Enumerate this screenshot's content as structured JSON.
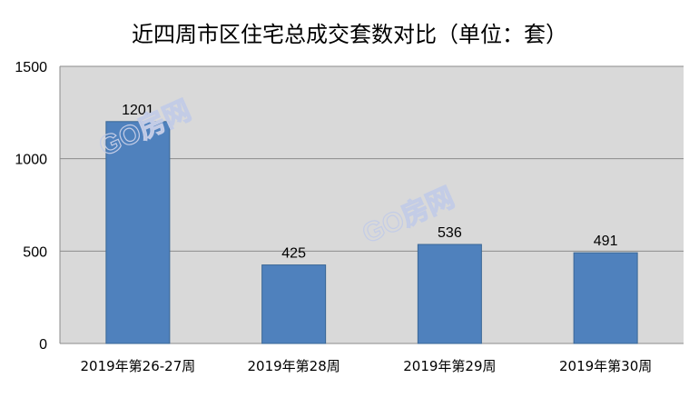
{
  "chart_data": {
    "type": "bar",
    "title": "近四周市区住宅总成交套数对比（单位：套）",
    "categories": [
      "2019年第26-27周",
      "2019年第28周",
      "2019年第29周",
      "2019年第30周"
    ],
    "values": [
      1201,
      425,
      536,
      491
    ],
    "data_labels": [
      "1201",
      "425",
      "536",
      "491"
    ],
    "ylim": [
      0,
      1500
    ],
    "yticks": [
      0,
      500,
      1000,
      1500
    ],
    "ytick_labels": [
      "0",
      "500",
      "1000",
      "1500"
    ],
    "grid": true,
    "legend": "none",
    "xlabel": "",
    "ylabel": ""
  },
  "watermark": "GO房网",
  "colors": {
    "bar": "#4f81bd",
    "bar_edge": "#3a6796",
    "plot_background": "#d9d9d9",
    "grid": "#8c8c8c"
  }
}
